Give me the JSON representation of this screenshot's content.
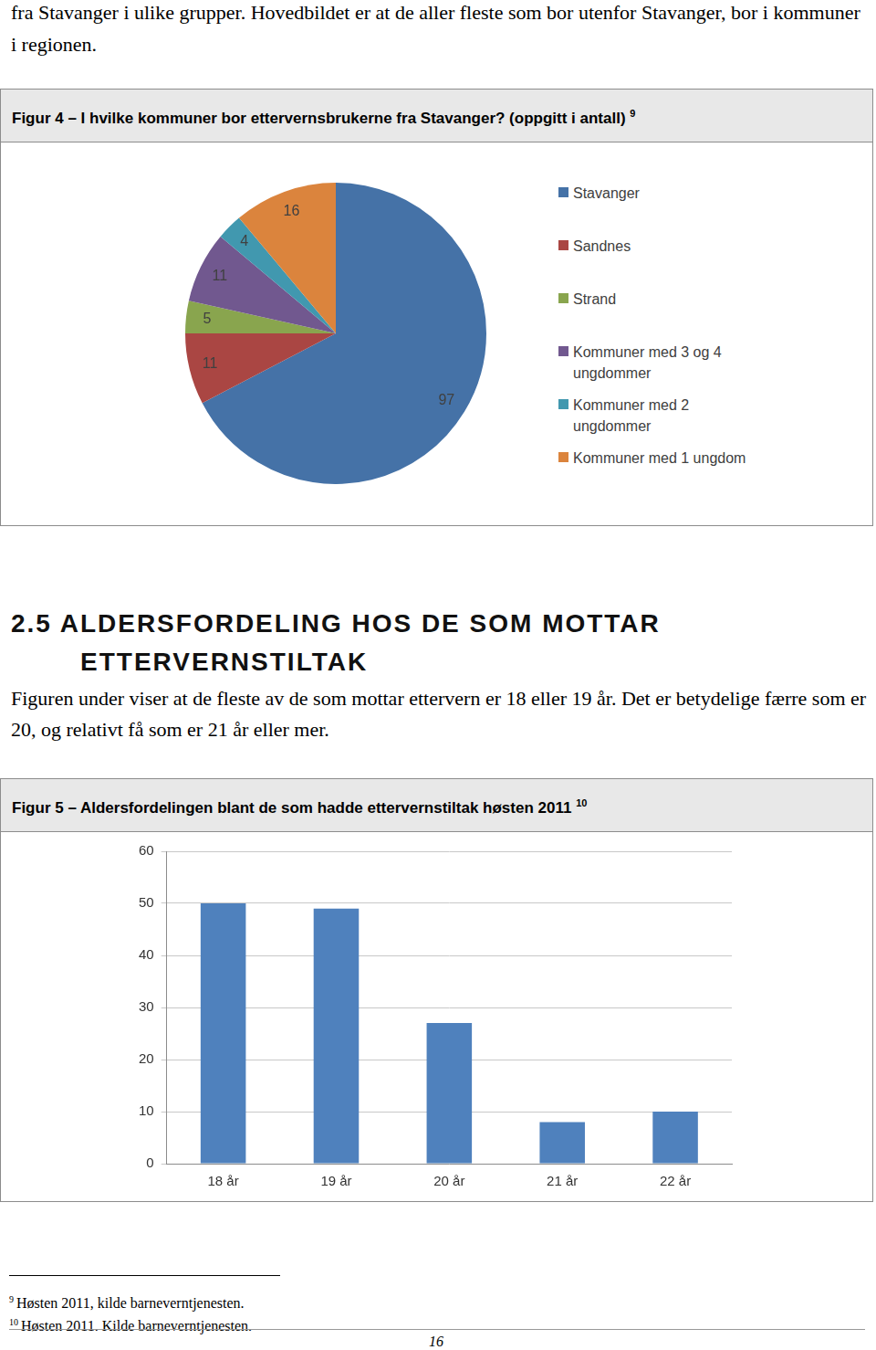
{
  "header_text": "fra Stavanger i ulike grupper. Hovedbildet er at de aller fleste som bor utenfor Stavanger, bor i kommuner i regionen.",
  "chart_data": [
    {
      "type": "pie",
      "title": "Figur 4 – I hvilke kommuner bor ettervernsbrukerne fra Stavanger? (oppgitt i antall)",
      "title_footnote": "9",
      "categories": [
        "Stavanger",
        "Sandnes",
        "Strand",
        "Kommuner med 3 og 4 ungdommer",
        "Kommuner med 2 ungdommer",
        "Kommuner med 1 ungdom"
      ],
      "values": [
        97,
        11,
        5,
        11,
        4,
        16
      ],
      "colors": [
        "#4572a7",
        "#aa4643",
        "#89a54e",
        "#71588f",
        "#4198af",
        "#db843d"
      ],
      "data_labels": true,
      "legend": "right"
    },
    {
      "type": "bar",
      "title": "Figur 5 – Aldersfordelingen blant de som hadde ettervernstiltak høsten 2011",
      "title_footnote": "10",
      "categories": [
        "18 år",
        "19 år",
        "20 år",
        "21 år",
        "22 år"
      ],
      "values": [
        50,
        49,
        27,
        8,
        10
      ],
      "color": "#4f81bd",
      "ylim": [
        0,
        60
      ],
      "yticks": [
        0,
        10,
        20,
        30,
        40,
        50,
        60
      ],
      "grid": true
    }
  ],
  "section": {
    "heading": "2.5 ALDERSFORDELING HOS DE SOM MOTTAR ETTERVERNSTILTAK",
    "paragraph": "Figuren under viser at de fleste av de som mottar ettervern er 18 eller 19 år. Det er betydelige færre som er 20, og relativt få som er 21 år eller mer."
  },
  "footnotes": [
    {
      "mark": "9",
      "text": "Høsten 2011, kilde barneverntjenesten."
    },
    {
      "mark": "10",
      "text": "Høsten 2011. Kilde barneverntjenesten."
    }
  ],
  "page_number": 16
}
